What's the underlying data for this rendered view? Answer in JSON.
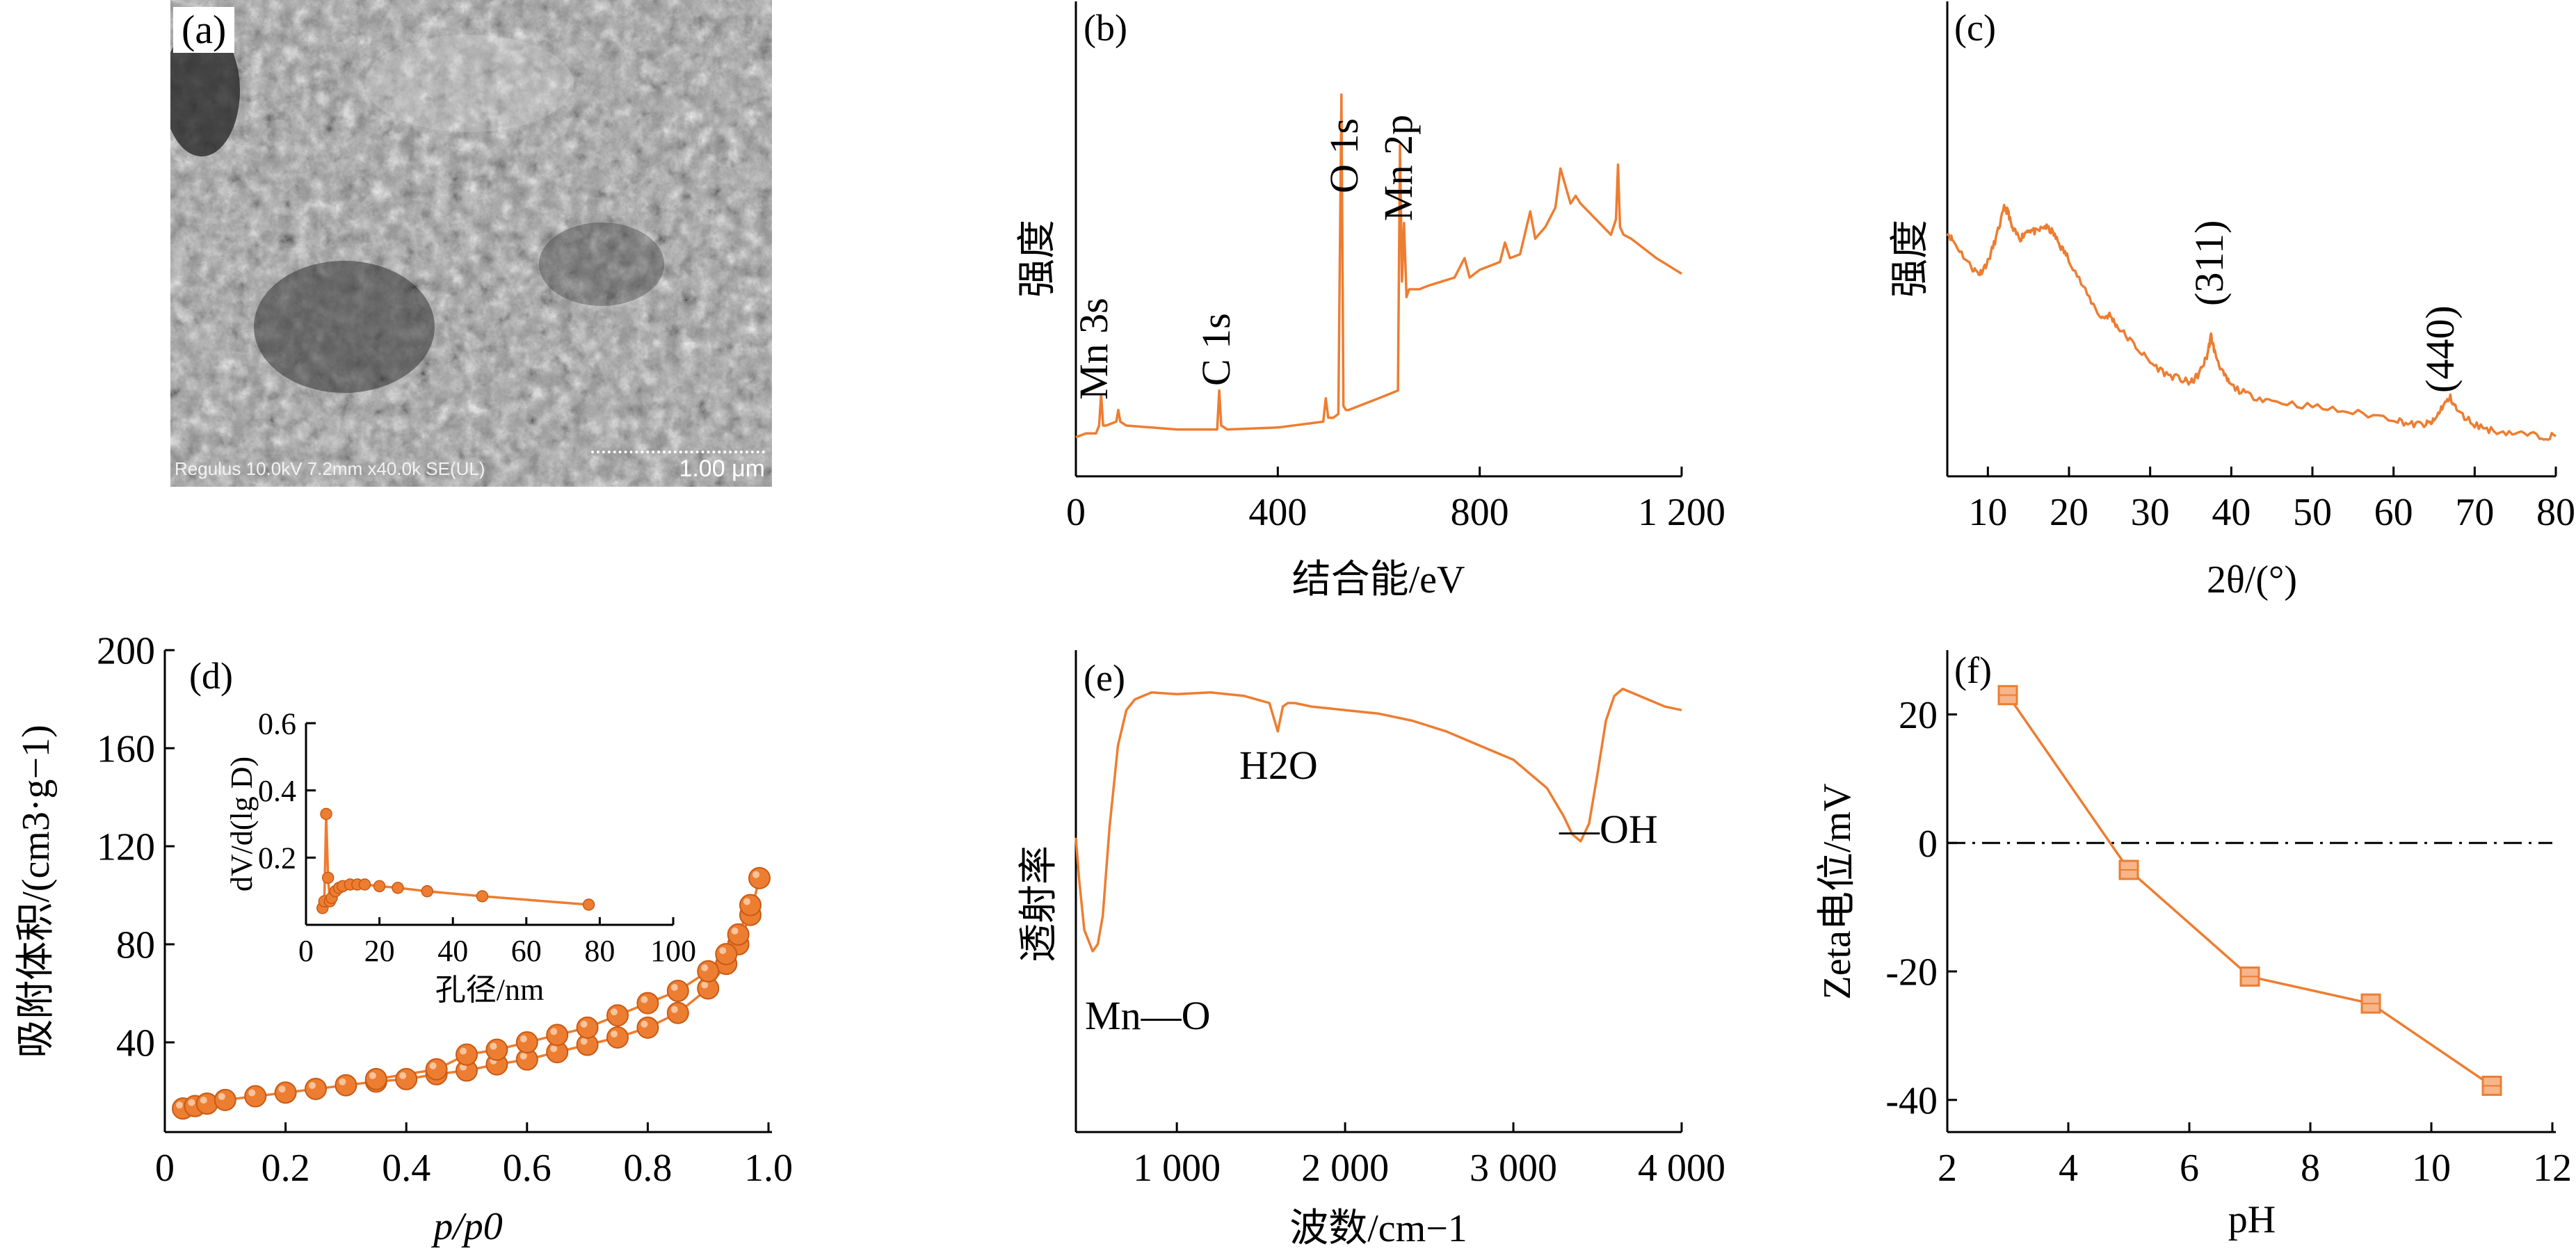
{
  "panels": {
    "a": {
      "label": "(a)",
      "instrument_info": "Regulus 10.0kV 7.2mm x40.0k SE(UL)",
      "scale": "1.00 μm"
    },
    "b": {
      "label": "(b)"
    },
    "c": {
      "label": "(c)"
    },
    "d": {
      "label": "(d)"
    },
    "e": {
      "label": "(e)"
    },
    "f": {
      "label": "(f)"
    }
  },
  "colors": {
    "series": "#ed7d31",
    "axis": "#000000",
    "zero_line": "#000000",
    "sem_dark": "#4a4a4a",
    "sem_light": "#c8c8c8"
  },
  "chart_data": [
    {
      "id": "b",
      "type": "line",
      "xlabel": "结合能/eV",
      "ylabel": "强度",
      "xlim": [
        0,
        1200
      ],
      "xticks": [
        0,
        400,
        800,
        1200
      ],
      "xtick_labels": [
        "0",
        "400",
        "800",
        "1 200"
      ],
      "ylim": [
        0,
        100
      ],
      "x": [
        0,
        20,
        40,
        46,
        50,
        54,
        60,
        80,
        84,
        88,
        100,
        200,
        270,
        280,
        284,
        288,
        300,
        400,
        490,
        495,
        500,
        510,
        520,
        526,
        530,
        535,
        540,
        560,
        600,
        638,
        642,
        646,
        650,
        655,
        660,
        680,
        700,
        750,
        770,
        780,
        800,
        840,
        850,
        860,
        880,
        900,
        910,
        930,
        950,
        960,
        980,
        990,
        1000,
        1060,
        1070,
        1074,
        1078,
        1085,
        1100,
        1150,
        1200
      ],
      "values": [
        2,
        3,
        3,
        5,
        13,
        5,
        5,
        6,
        9,
        6,
        5,
        4,
        4,
        4,
        14,
        5,
        4,
        4.5,
        6,
        12,
        7,
        7,
        8,
        90,
        10,
        9,
        9,
        10,
        12,
        14,
        77,
        42,
        57,
        38,
        40,
        40,
        41,
        43,
        48,
        43,
        45,
        47,
        52,
        48,
        49,
        60,
        53,
        56,
        61,
        71,
        62,
        64,
        62,
        54,
        58,
        72,
        56,
        54,
        53,
        48,
        44
      ],
      "annotations": [
        {
          "text": "Mn 3s",
          "x": 45
        },
        {
          "text": "C 1s",
          "x": 284
        },
        {
          "text": "O 1s",
          "x": 529
        },
        {
          "text": "Mn 2p",
          "x": 642
        }
      ]
    },
    {
      "id": "c",
      "type": "line",
      "xlabel": "2θ/(°)",
      "ylabel": "强度",
      "xlim": [
        5,
        80
      ],
      "xticks": [
        10,
        20,
        30,
        40,
        50,
        60,
        70,
        80
      ],
      "ylim": [
        0,
        100
      ],
      "x": [
        5,
        6,
        8,
        9,
        10,
        11,
        12,
        12.5,
        13,
        14,
        15,
        16,
        17,
        18,
        19,
        20,
        22,
        24,
        25,
        26,
        28,
        30,
        32,
        34,
        35,
        36,
        37,
        37.5,
        38,
        39,
        40,
        42,
        45,
        50,
        55,
        60,
        62,
        64,
        65,
        66,
        67,
        68,
        70,
        72,
        75,
        78,
        80
      ],
      "values": [
        72,
        68,
        60,
        58,
        62,
        70,
        80,
        79,
        73,
        70,
        73,
        72,
        74,
        72,
        67,
        63,
        52,
        43,
        44,
        40,
        34,
        28,
        24,
        22,
        21,
        24,
        30,
        37,
        31,
        24,
        20,
        17,
        15,
        13,
        11,
        9,
        7,
        7,
        8,
        13,
        16,
        11,
        7,
        5,
        4,
        3,
        3
      ],
      "annotations": [
        {
          "text": "(311)",
          "x": 37.2
        },
        {
          "text": "(440)",
          "x": 65.8
        }
      ]
    },
    {
      "id": "d",
      "type": "scatter",
      "xlabel": "p/p0",
      "ylabel": "吸附体积/(cm3·g−1)",
      "xlim": [
        0,
        1.0
      ],
      "xticks": [
        0.0,
        0.2,
        0.4,
        0.6,
        0.8,
        1.0
      ],
      "xtick_labels": [
        "0",
        "0.2",
        "0.4",
        "0.6",
        "0.8",
        "1.0"
      ],
      "ylim": [
        0,
        200
      ],
      "yticks": [
        40,
        80,
        120,
        160,
        200
      ],
      "series": [
        {
          "x": [
            0.03,
            0.05,
            0.07,
            0.1,
            0.15,
            0.2,
            0.25,
            0.3,
            0.35,
            0.4,
            0.45,
            0.5,
            0.55,
            0.6,
            0.65,
            0.7,
            0.75,
            0.8,
            0.85,
            0.9,
            0.93,
            0.95,
            0.97,
            0.985
          ],
          "values": [
            13,
            14,
            15,
            16.5,
            18,
            19.5,
            21,
            22.5,
            24,
            25,
            27,
            28.5,
            31,
            33,
            36,
            39,
            42,
            46,
            52,
            62,
            72,
            80,
            92,
            107
          ]
        },
        {
          "x": [
            0.35,
            0.45,
            0.5,
            0.55,
            0.6,
            0.65,
            0.7,
            0.75,
            0.8,
            0.85,
            0.9,
            0.93,
            0.95,
            0.97
          ],
          "values": [
            25,
            29,
            35,
            37,
            40,
            43,
            46,
            51,
            56,
            61,
            69,
            76,
            84,
            96
          ]
        }
      ],
      "inset": {
        "type": "line",
        "xlabel": "孔径/nm",
        "ylabel": "dV/d(lg D)",
        "xlim": [
          0,
          100
        ],
        "xticks": [
          0,
          20,
          40,
          60,
          80,
          100
        ],
        "ylim": [
          0,
          0.6
        ],
        "yticks": [
          0.2,
          0.4,
          0.6
        ],
        "x": [
          4.5,
          5,
          5.5,
          6,
          6.5,
          7,
          8,
          9,
          10,
          12,
          14,
          16,
          20,
          25,
          33,
          48,
          77
        ],
        "values": [
          0.05,
          0.07,
          0.33,
          0.14,
          0.07,
          0.08,
          0.1,
          0.11,
          0.115,
          0.12,
          0.12,
          0.12,
          0.115,
          0.11,
          0.1,
          0.085,
          0.06
        ]
      }
    },
    {
      "id": "e",
      "type": "line",
      "xlabel": "波数/cm−1",
      "ylabel": "透射率",
      "xlim": [
        400,
        4000
      ],
      "xticks": [
        1000,
        2000,
        3000,
        4000
      ],
      "xtick_labels": [
        "1 000",
        "2 000",
        "3 000",
        "4 000"
      ],
      "ylim": [
        0,
        100
      ],
      "x": [
        400,
        420,
        450,
        500,
        530,
        560,
        600,
        650,
        700,
        750,
        800,
        850,
        1000,
        1200,
        1400,
        1550,
        1600,
        1630,
        1660,
        1700,
        1800,
        2000,
        2200,
        2400,
        2600,
        2800,
        3000,
        3200,
        3300,
        3350,
        3400,
        3450,
        3500,
        3550,
        3600,
        3650,
        3700,
        3800,
        3900,
        4000
      ],
      "values": [
        52,
        40,
        26,
        20,
        22,
        30,
        55,
        78,
        88,
        91,
        92,
        93,
        92.5,
        93,
        92,
        90,
        82,
        89,
        90,
        90,
        89,
        88,
        87,
        85,
        82,
        78,
        74,
        66,
        58,
        53,
        51,
        56,
        70,
        85,
        92,
        94,
        93,
        91,
        89,
        88
      ],
      "annotations": [
        {
          "text": "Mn—O",
          "x": 500
        },
        {
          "text": "H2O",
          "x": 1630
        },
        {
          "text": "—OH",
          "x": 3400
        }
      ]
    },
    {
      "id": "f",
      "type": "line",
      "xlabel": "pH",
      "ylabel": "Zeta电位/mV",
      "xlim": [
        2,
        12
      ],
      "xticks": [
        2,
        4,
        6,
        8,
        10,
        12
      ],
      "ylim": [
        -45,
        30
      ],
      "yticks": [
        -40,
        -20,
        0,
        20
      ],
      "x": [
        3,
        5,
        7,
        9,
        11
      ],
      "values": [
        23,
        -4.2,
        -20.8,
        -25,
        -37.8
      ],
      "reference_line": {
        "y": 0,
        "style": "dash-dot"
      }
    }
  ]
}
